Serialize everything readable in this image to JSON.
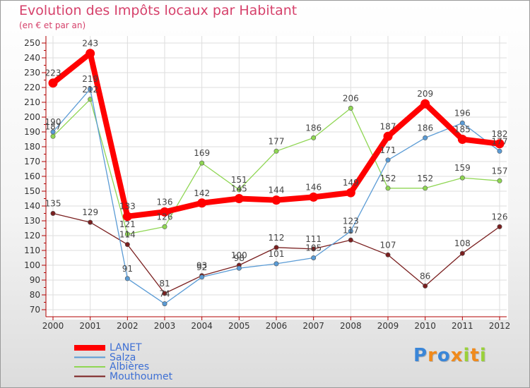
{
  "chart_data": {
    "type": "line",
    "title": "Evolution des Impôts locaux par Habitant",
    "subtitle": "(en € et par an)",
    "x": [
      "2000",
      "2001",
      "2002",
      "2003",
      "2004",
      "2005",
      "2006",
      "2007",
      "2008",
      "2009",
      "2010",
      "2011",
      "2012"
    ],
    "ylim": [
      70,
      250
    ],
    "yticks": [
      70,
      80,
      90,
      100,
      110,
      120,
      130,
      140,
      150,
      160,
      170,
      180,
      190,
      200,
      210,
      220,
      230,
      240,
      250
    ],
    "grid": true,
    "legend_position": "bottom-left",
    "series": [
      {
        "name": "LANET",
        "color": "#ff0000",
        "values": [
          223,
          243,
          133,
          136,
          142,
          145,
          144,
          146,
          149,
          187,
          209,
          185,
          182
        ]
      },
      {
        "name": "Salza",
        "color": "#5a9bd5",
        "values": [
          190,
          219,
          91,
          74,
          92,
          98,
          101,
          105,
          123,
          171,
          186,
          196,
          177
        ]
      },
      {
        "name": "Albières",
        "color": "#8fd653",
        "values": [
          187,
          212,
          121,
          126,
          169,
          151,
          177,
          186,
          206,
          152,
          152,
          159,
          157
        ]
      },
      {
        "name": "Mouthoumet",
        "color": "#7a1f1f",
        "values": [
          135,
          129,
          114,
          81,
          93,
          100,
          112,
          111,
          117,
          107,
          86,
          108,
          126
        ]
      }
    ]
  },
  "logo": {
    "letters": [
      "P",
      "r",
      "o",
      "x",
      "i",
      "t",
      "i"
    ],
    "colors": [
      "#3a86d8",
      "#f08a1c",
      "#3a86d8",
      "#f08a1c",
      "#9ad13a",
      "#f08a1c",
      "#9ad13a"
    ]
  }
}
